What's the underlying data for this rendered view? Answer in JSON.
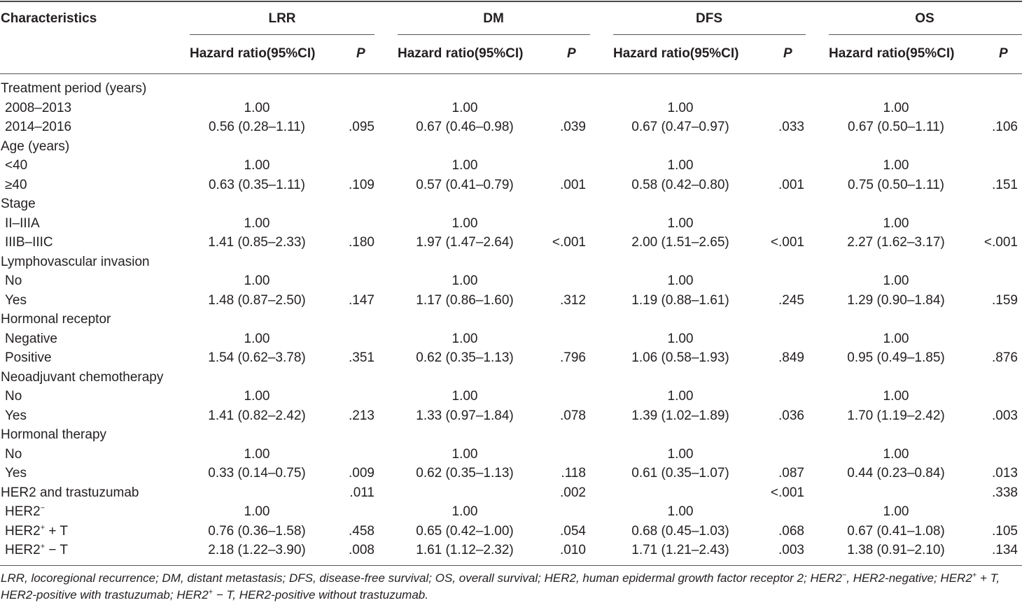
{
  "header": {
    "characteristics": "Characteristics",
    "groups": [
      "LRR",
      "DM",
      "DFS",
      "OS"
    ],
    "hazard_label": "Hazard ratio(95%CI)",
    "p_label": "P"
  },
  "rows": [
    {
      "label": "Treatment period (years)",
      "sub": false,
      "cells": [
        "",
        "",
        "",
        "",
        "",
        "",
        "",
        ""
      ]
    },
    {
      "label": "2008–2013",
      "sub": true,
      "cells": [
        "1.00",
        "",
        "1.00",
        "",
        "1.00",
        "",
        "1.00",
        ""
      ]
    },
    {
      "label": "2014–2016",
      "sub": true,
      "cells": [
        "0.56 (0.28–1.11)",
        ".095",
        "0.67 (0.46–0.98)",
        ".039",
        "0.67 (0.47–0.97)",
        ".033",
        "0.67 (0.50–1.11)",
        ".106"
      ]
    },
    {
      "label": "Age (years)",
      "sub": false,
      "cells": [
        "",
        "",
        "",
        "",
        "",
        "",
        "",
        ""
      ]
    },
    {
      "label": "<40",
      "sub": true,
      "cells": [
        "1.00",
        "",
        "1.00",
        "",
        "1.00",
        "",
        "1.00",
        ""
      ]
    },
    {
      "label": "≥40",
      "sub": true,
      "cells": [
        "0.63 (0.35–1.11)",
        ".109",
        "0.57 (0.41–0.79)",
        ".001",
        "0.58 (0.42–0.80)",
        ".001",
        "0.75 (0.50–1.11)",
        ".151"
      ]
    },
    {
      "label": "Stage",
      "sub": false,
      "cells": [
        "",
        "",
        "",
        "",
        "",
        "",
        "",
        ""
      ]
    },
    {
      "label": "II–IIIA",
      "sub": true,
      "cells": [
        "1.00",
        "",
        "1.00",
        "",
        "1.00",
        "",
        "1.00",
        ""
      ]
    },
    {
      "label": "IIIB–IIIC",
      "sub": true,
      "cells": [
        "1.41 (0.85–2.33)",
        ".180",
        "1.97 (1.47–2.64)",
        "<.001",
        "2.00 (1.51–2.65)",
        "<.001",
        "2.27 (1.62–3.17)",
        "<.001"
      ]
    },
    {
      "label": "Lymphovascular invasion",
      "sub": false,
      "cells": [
        "",
        "",
        "",
        "",
        "",
        "",
        "",
        ""
      ]
    },
    {
      "label": "No",
      "sub": true,
      "cells": [
        "1.00",
        "",
        "1.00",
        "",
        "1.00",
        "",
        "1.00",
        ""
      ]
    },
    {
      "label": "Yes",
      "sub": true,
      "cells": [
        "1.48 (0.87–2.50)",
        ".147",
        "1.17 (0.86–1.60)",
        ".312",
        "1.19 (0.88–1.61)",
        ".245",
        "1.29 (0.90–1.84)",
        ".159"
      ]
    },
    {
      "label": "Hormonal receptor",
      "sub": false,
      "cells": [
        "",
        "",
        "",
        "",
        "",
        "",
        "",
        ""
      ]
    },
    {
      "label": "Negative",
      "sub": true,
      "cells": [
        "1.00",
        "",
        "1.00",
        "",
        "1.00",
        "",
        "1.00",
        ""
      ]
    },
    {
      "label": "Positive",
      "sub": true,
      "cells": [
        "1.54 (0.62–3.78)",
        ".351",
        "0.62 (0.35–1.13)",
        ".796",
        "1.06 (0.58–1.93)",
        ".849",
        "0.95 (0.49–1.85)",
        ".876"
      ]
    },
    {
      "label": "Neoadjuvant chemotherapy",
      "sub": false,
      "cells": [
        "",
        "",
        "",
        "",
        "",
        "",
        "",
        ""
      ]
    },
    {
      "label": "No",
      "sub": true,
      "cells": [
        "1.00",
        "",
        "1.00",
        "",
        "1.00",
        "",
        "1.00",
        ""
      ]
    },
    {
      "label": "Yes",
      "sub": true,
      "cells": [
        "1.41 (0.82–2.42)",
        ".213",
        "1.33 (0.97–1.84)",
        ".078",
        "1.39 (1.02–1.89)",
        ".036",
        "1.70 (1.19–2.42)",
        ".003"
      ]
    },
    {
      "label": "Hormonal therapy",
      "sub": false,
      "cells": [
        "",
        "",
        "",
        "",
        "",
        "",
        "",
        ""
      ]
    },
    {
      "label": "No",
      "sub": true,
      "cells": [
        "1.00",
        "",
        "1.00",
        "",
        "1.00",
        "",
        "1.00",
        ""
      ]
    },
    {
      "label": "Yes",
      "sub": true,
      "cells": [
        "0.33 (0.14–0.75)",
        ".009",
        "0.62 (0.35–1.13)",
        ".118",
        "0.61 (0.35–1.07)",
        ".087",
        "0.44 (0.23–0.84)",
        ".013"
      ]
    },
    {
      "label": "HER2 and trastuzumab",
      "sub": false,
      "cells": [
        "",
        ".011",
        "",
        ".002",
        "",
        "<.001",
        "",
        ".338"
      ]
    },
    {
      "label": "HER2",
      "sup": "−",
      "suffix": "",
      "sub": true,
      "cells": [
        "1.00",
        "",
        "1.00",
        "",
        "1.00",
        "",
        "1.00",
        ""
      ]
    },
    {
      "label": "HER2",
      "sup": "+",
      "suffix": " + T",
      "sub": true,
      "cells": [
        "0.76 (0.36–1.58)",
        ".458",
        "0.65 (0.42–1.00)",
        ".054",
        "0.68 (0.45–1.03)",
        ".068",
        "0.67 (0.41–1.08)",
        ".105"
      ]
    },
    {
      "label": "HER2",
      "sup": "+",
      "suffix": " − T",
      "sub": true,
      "cells": [
        "2.18 (1.22–3.90)",
        ".008",
        "1.61 (1.12–2.32)",
        ".010",
        "1.71 (1.21–2.43)",
        ".003",
        "1.38 (0.91–2.10)",
        ".134"
      ]
    }
  ],
  "footnote": {
    "parts": [
      {
        "t": "LRR, locoregional recurrence; DM, distant metastasis; DFS, disease-free survival; OS, overall survival; HER2, human epidermal growth factor receptor 2; HER2"
      },
      {
        "s": "−"
      },
      {
        "t": ", HER2-negative; HER2"
      },
      {
        "s": "+"
      },
      {
        "t": " + T, HER2-positive with trastuzumab; HER2"
      },
      {
        "s": "+"
      },
      {
        "t": " − T, HER2-positive without trastuzumab."
      }
    ]
  }
}
